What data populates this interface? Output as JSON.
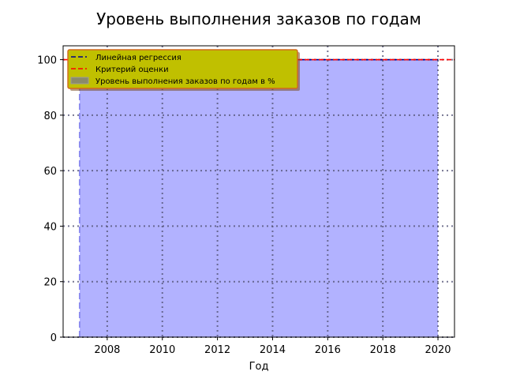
{
  "chart_data": {
    "type": "area",
    "title": "Уровень выполнения заказов по годам",
    "xlabel": "Год",
    "ylabel": "",
    "xlim": [
      2006.4,
      2020.6
    ],
    "ylim": [
      0,
      105
    ],
    "x_ticks": [
      2008,
      2010,
      2012,
      2014,
      2016,
      2018,
      2020
    ],
    "y_ticks": [
      0,
      20,
      40,
      60,
      80,
      100
    ],
    "grid": true,
    "legend_position": "top-left",
    "series": [
      {
        "name": "Уровень выполнения заказов по годам в %",
        "kind": "area",
        "color": "#b2b2ff",
        "x": [
          2007,
          2008,
          2009,
          2010,
          2011,
          2012,
          2013,
          2014,
          2015,
          2016,
          2017,
          2018,
          2019,
          2020
        ],
        "values": [
          100,
          100,
          100,
          100,
          100,
          100,
          100,
          100,
          100,
          100,
          100,
          100,
          100,
          100
        ]
      },
      {
        "name": "Линейная регрессия",
        "kind": "line",
        "color": "#00008b",
        "dash": "dashed",
        "x": [
          2007,
          2020
        ],
        "values": [
          100,
          100
        ]
      },
      {
        "name": "Критерий оценки",
        "kind": "hline",
        "color": "#ff0000",
        "dash": "dashed",
        "value": 100
      }
    ],
    "legend": {
      "background": "#c0c000",
      "border": "#d2691e",
      "entries": [
        "Линейная регрессия",
        "Критерий оценки",
        "Уровень выполнения заказов по годам в %"
      ]
    }
  }
}
